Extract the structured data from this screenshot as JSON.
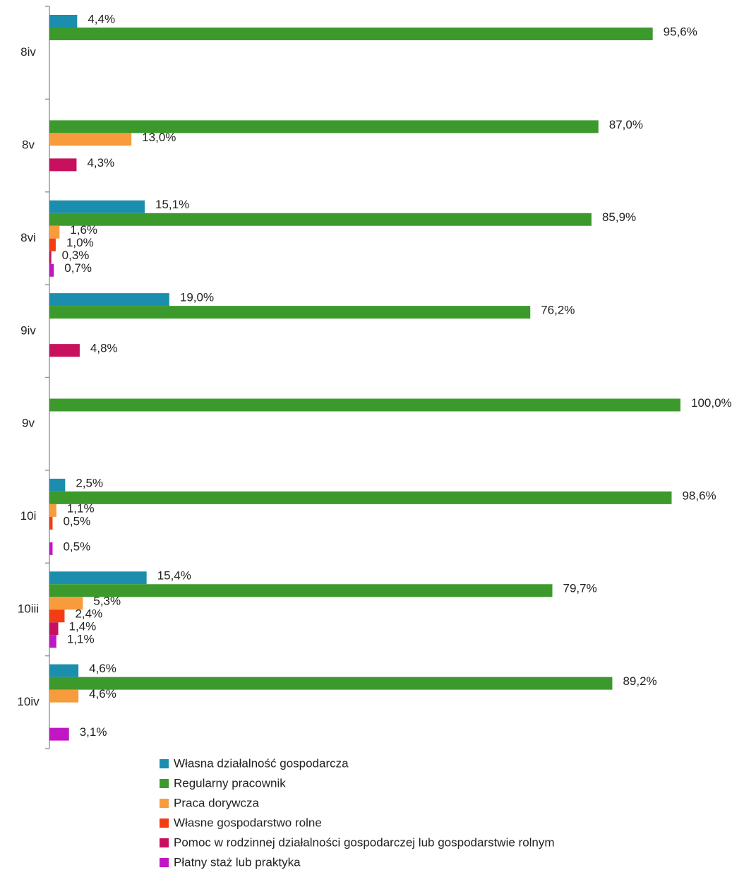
{
  "chart_data": {
    "type": "bar",
    "orientation": "horizontal",
    "categories": [
      "8iv",
      "8v",
      "8vi",
      "9iv",
      "9v",
      "10i",
      "10iii",
      "10iv"
    ],
    "xlim": [
      0,
      100
    ],
    "series": [
      {
        "name": "Własna działalność gospodarcza",
        "color": "#1b8eae",
        "values": [
          4.4,
          null,
          15.1,
          19.0,
          null,
          2.5,
          15.4,
          4.6
        ],
        "value_labels": [
          "4,4%",
          null,
          "15,1%",
          "19,0%",
          null,
          "2,5%",
          "15,4%",
          "4,6%"
        ]
      },
      {
        "name": "Regularny pracownik",
        "color": "#3c9a2c",
        "values": [
          95.6,
          87.0,
          85.9,
          76.2,
          100.0,
          98.6,
          79.7,
          89.2
        ],
        "value_labels": [
          "95,6%",
          "87,0%",
          "85,9%",
          "76,2%",
          "100,0%",
          "98,6%",
          "79,7%",
          "89,2%"
        ]
      },
      {
        "name": "Praca dorywcza",
        "color": "#f89b3c",
        "values": [
          null,
          13.0,
          1.6,
          null,
          null,
          1.1,
          5.3,
          4.6
        ],
        "value_labels": [
          null,
          "13,0%",
          "1,6%",
          null,
          null,
          "1,1%",
          "5,3%",
          "4,6%"
        ]
      },
      {
        "name": "Własne gospodarstwo rolne",
        "color": "#f43c12",
        "values": [
          null,
          null,
          1.0,
          null,
          null,
          0.5,
          2.4,
          null
        ],
        "value_labels": [
          null,
          null,
          "1,0%",
          null,
          null,
          "0,5%",
          "2,4%",
          null
        ]
      },
      {
        "name": "Pomoc w rodzinnej działalności gospodarczej lub gospodarstwie rolnym",
        "color": "#c8115e",
        "values": [
          null,
          4.3,
          0.3,
          4.8,
          null,
          null,
          1.4,
          null
        ],
        "value_labels": [
          null,
          "4,3%",
          "0,3%",
          "4,8%",
          null,
          null,
          "1,4%",
          null
        ]
      },
      {
        "name": "Płatny staż lub praktyka",
        "color": "#c016c4",
        "values": [
          null,
          null,
          0.7,
          null,
          null,
          0.5,
          1.1,
          3.1
        ],
        "value_labels": [
          null,
          null,
          "0,7%",
          null,
          null,
          "0,5%",
          "1,1%",
          "3,1%"
        ]
      }
    ]
  }
}
